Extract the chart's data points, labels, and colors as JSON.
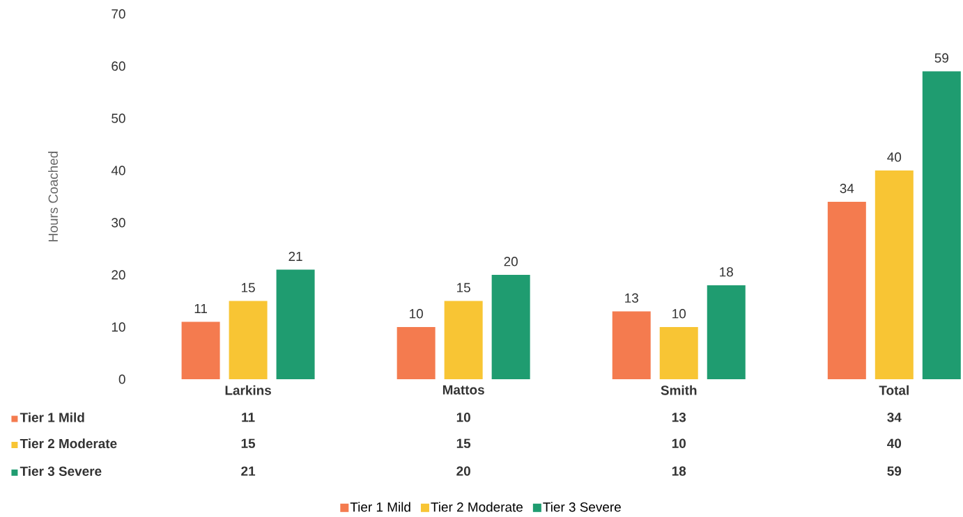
{
  "chart_data": {
    "type": "bar",
    "ylabel": "Hours Coached",
    "categories": [
      "Larkins",
      "Mattos",
      "Smith",
      "Total"
    ],
    "series": [
      {
        "name": "Tier 1 Mild",
        "color": "#f47b4f",
        "values": [
          11,
          10,
          13,
          34
        ],
        "value_labels": [
          "11",
          "10",
          "13",
          "34"
        ]
      },
      {
        "name": "Tier 2 Moderate",
        "color": "#f8c534",
        "values": [
          15,
          15,
          10,
          40
        ],
        "value_labels": [
          "15",
          "15",
          "10",
          "40"
        ]
      },
      {
        "name": "Tier 3 Severe",
        "color": "#1f9c70",
        "values": [
          21,
          20,
          18,
          59
        ],
        "value_labels": [
          "21",
          "20",
          "18",
          "59"
        ]
      }
    ],
    "annotations": [
      "11",
      "10",
      "13",
      "34",
      "15",
      "15",
      "10",
      "40",
      "21",
      "20",
      "18",
      "59"
    ],
    "ylim": [
      0,
      70
    ],
    "yticks": [
      0,
      10,
      20,
      30,
      40,
      50,
      60,
      70
    ],
    "grid": false,
    "legend": "bottom",
    "data_labels": true
  }
}
